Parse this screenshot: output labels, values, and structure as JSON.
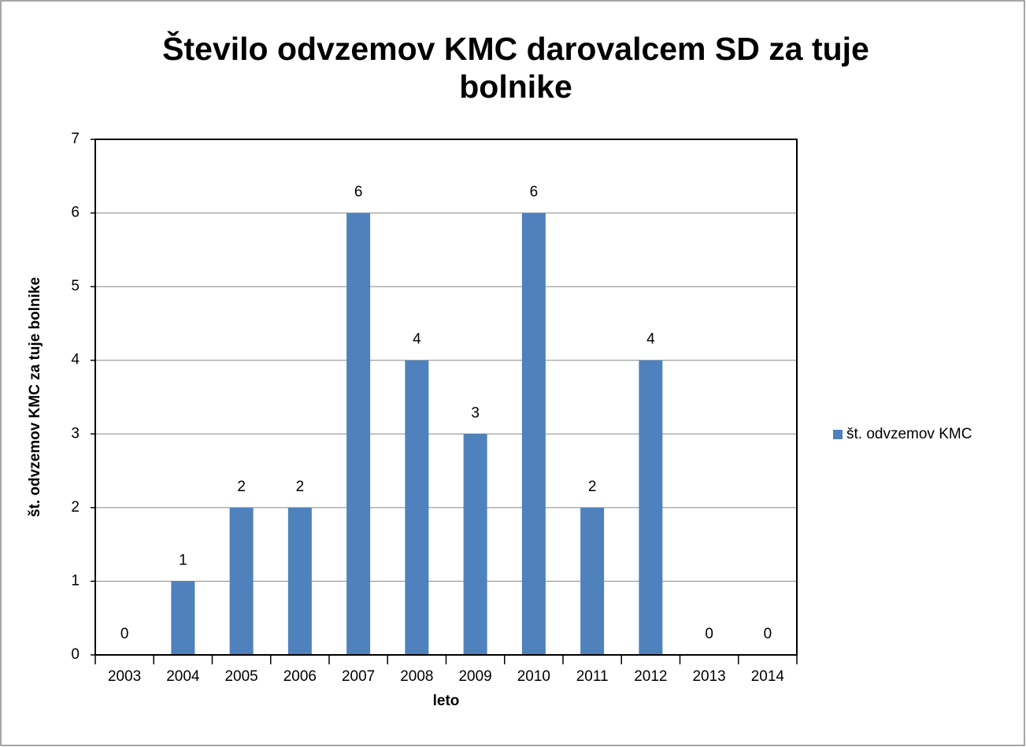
{
  "chart_data": {
    "type": "bar",
    "title": "Število odvzemov KMC darovalcem SD za tuje bolnike",
    "xlabel": "leto",
    "ylabel": "št. odvzemov KMC za tuje bolnike",
    "categories": [
      "2003",
      "2004",
      "2005",
      "2006",
      "2007",
      "2008",
      "2009",
      "2010",
      "2011",
      "2012",
      "2013",
      "2014"
    ],
    "series": [
      {
        "name": "št. odvzemov KMC",
        "color": "#4f81bd",
        "values": [
          0,
          1,
          2,
          2,
          6,
          4,
          3,
          6,
          2,
          4,
          0,
          0
        ]
      }
    ],
    "ylim": [
      0,
      7
    ],
    "yticks": [
      0,
      1,
      2,
      3,
      4,
      5,
      6,
      7
    ],
    "grid": true,
    "legend": "right",
    "data_labels": true
  }
}
